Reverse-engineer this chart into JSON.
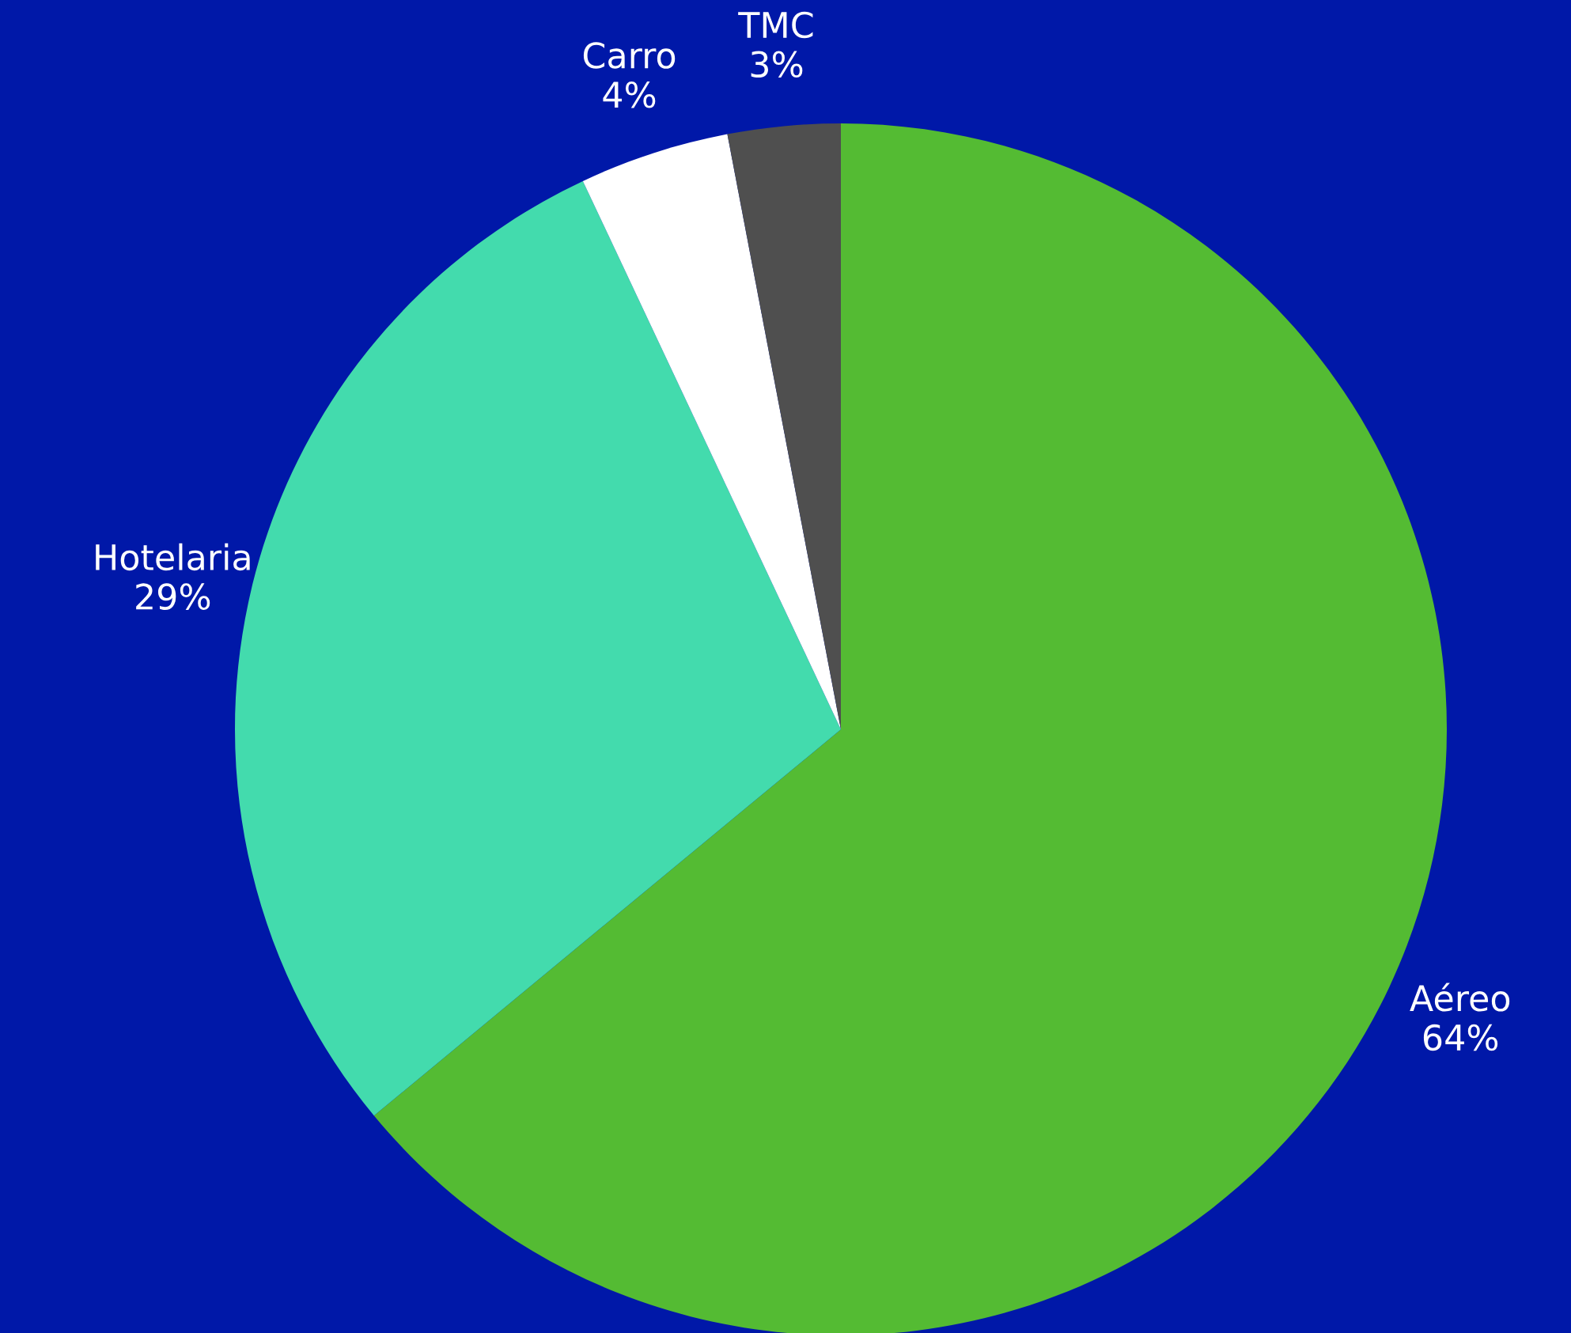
{
  "chart_data": {
    "type": "pie",
    "categories": [
      "Aéreo",
      "Hotelaria",
      "Carro",
      "TMC"
    ],
    "values": [
      64,
      29,
      4,
      3
    ],
    "value_labels": [
      "64%",
      "29%",
      "4%",
      "3%"
    ],
    "colors": [
      "#54bb33",
      "#43dbad",
      "#ffffff",
      "#4f4f4f"
    ],
    "legend": false
  }
}
